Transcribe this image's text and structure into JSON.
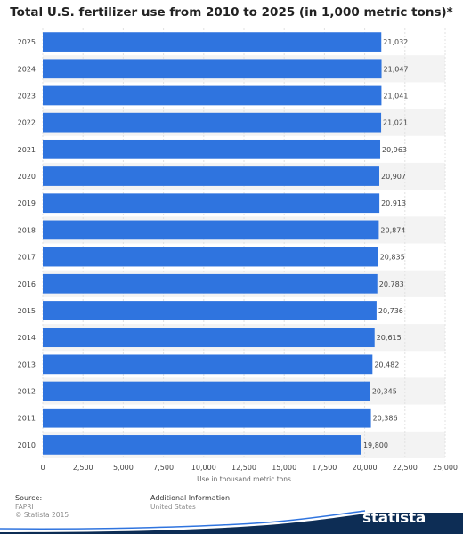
{
  "chart_data": {
    "type": "bar",
    "orientation": "horizontal",
    "title": "Total U.S. fertilizer use from 2010 to 2025 (in 1,000 metric tons)*",
    "xlabel": "Use in thousand metric tons",
    "ylabel": "",
    "categories": [
      "2025",
      "2024",
      "2023",
      "2022",
      "2021",
      "2020",
      "2019",
      "2018",
      "2017",
      "2016",
      "2015",
      "2014",
      "2013",
      "2012",
      "2011",
      "2010"
    ],
    "values": [
      21032,
      21047,
      21041,
      21021,
      20963,
      20907,
      20913,
      20874,
      20835,
      20783,
      20736,
      20615,
      20482,
      20345,
      20386,
      19800
    ],
    "value_labels": [
      "21,032",
      "21,047",
      "21,041",
      "21,021",
      "20,963",
      "20,907",
      "20,913",
      "20,874",
      "20,835",
      "20,783",
      "20,736",
      "20,615",
      "20,482",
      "20,345",
      "20,386",
      "19,800"
    ],
    "xlim": [
      0,
      25000
    ],
    "x_ticks": [
      0,
      2500,
      5000,
      7500,
      10000,
      12500,
      15000,
      17500,
      20000,
      22500,
      25000
    ],
    "x_tick_labels": [
      "0",
      "2,500",
      "5,000",
      "7,500",
      "10,000",
      "12,500",
      "15,000",
      "17,500",
      "20,000",
      "22,500",
      "25,000"
    ],
    "grid": true,
    "bar_color": "#2f74df"
  },
  "footer": {
    "source_label": "Source:",
    "source_lines": [
      "FAPRI",
      "© Statista 2015"
    ],
    "info_label": "Additional Information",
    "info_value": "United States"
  },
  "brand": {
    "name": "statista",
    "color": "#0d2d55"
  }
}
